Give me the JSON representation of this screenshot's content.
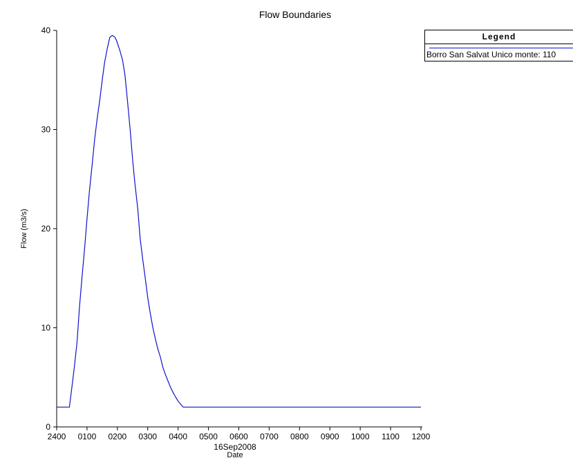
{
  "chart_data": {
    "type": "line",
    "title": "Flow Boundaries",
    "xlabel": "Date",
    "ylabel": "Flow  (m3/s)",
    "date_label": "16Sep2008",
    "x_tick_labels": [
      "2400",
      "0100",
      "0200",
      "0300",
      "0400",
      "0500",
      "0600",
      "0700",
      "0800",
      "0900",
      "1000",
      "1100",
      "1200"
    ],
    "y_ticks": [
      0,
      10,
      20,
      30,
      40
    ],
    "xlim": [
      0,
      12
    ],
    "ylim": [
      0,
      40
    ],
    "x_unit": "hours after 16Sep2008 2400",
    "series": [
      {
        "name": "Borro San Salvat Unico monte: 110",
        "color": "#1010cc",
        "x": [
          0,
          0.42,
          0.5,
          0.58,
          0.67,
          0.75,
          0.83,
          0.92,
          1.0,
          1.08,
          1.17,
          1.25,
          1.33,
          1.42,
          1.5,
          1.58,
          1.67,
          1.75,
          1.83,
          1.92,
          1.97,
          2.08,
          2.17,
          2.25,
          2.33,
          2.42,
          2.5,
          2.58,
          2.67,
          2.75,
          2.83,
          2.92,
          3.0,
          3.08,
          3.17,
          3.25,
          3.33,
          3.42,
          3.5,
          3.58,
          3.67,
          3.75,
          3.83,
          3.92,
          4.0,
          4.08,
          4.17,
          4.25,
          4.33,
          4.42,
          4.5,
          5.0,
          12.0
        ],
        "values": [
          2.0,
          2.0,
          4.0,
          6.0,
          8.5,
          12.0,
          15.0,
          18.0,
          21.0,
          23.8,
          26.5,
          29.0,
          31.0,
          33.0,
          35.0,
          36.8,
          38.2,
          39.3,
          39.5,
          39.3,
          39.0,
          38.0,
          37.0,
          35.5,
          33.0,
          30.0,
          27.0,
          24.5,
          22.0,
          19.0,
          17.0,
          15.0,
          13.0,
          11.5,
          10.0,
          8.9,
          7.9,
          7.0,
          6.0,
          5.3,
          4.6,
          4.0,
          3.5,
          3.0,
          2.6,
          2.3,
          2.0,
          2.0,
          2.0,
          2.0,
          2.0,
          2.0,
          2.0
        ]
      }
    ],
    "legend": {
      "title": "Legend",
      "position": "top-right"
    },
    "grid": false
  }
}
